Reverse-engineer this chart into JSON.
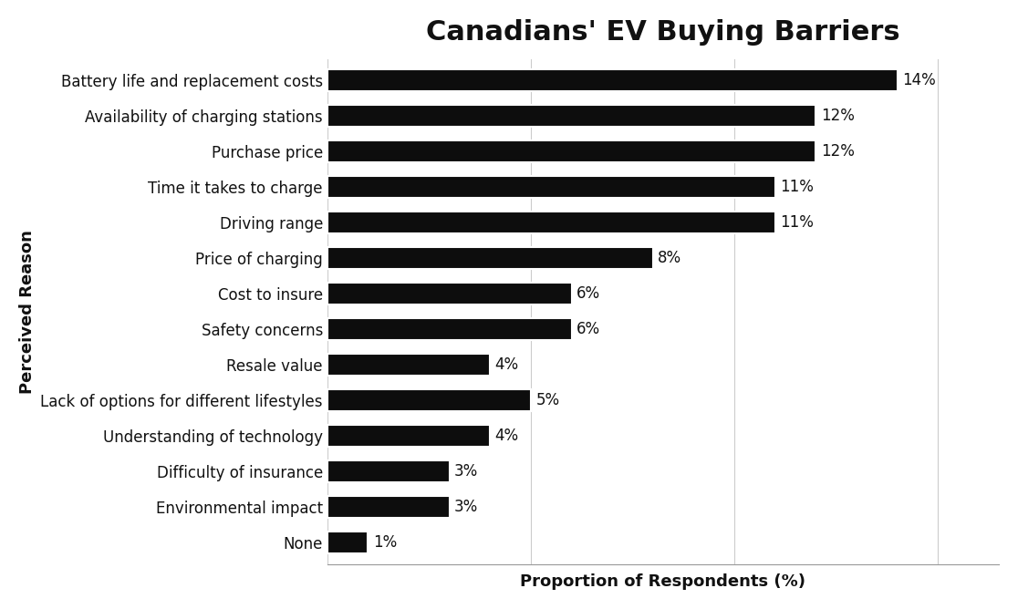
{
  "title": "Canadians' EV Buying Barriers",
  "xlabel": "Proportion of Respondents (%)",
  "ylabel": "Perceived Reason",
  "categories": [
    "Battery life and replacement costs",
    "Availability of charging stations",
    "Purchase price",
    "Time it takes to charge",
    "Driving range",
    "Price of charging",
    "Cost to insure",
    "Safety concerns",
    "Resale value",
    "Lack of options for different lifestyles",
    "Understanding of technology",
    "Difficulty of insurance",
    "Environmental impact",
    "None"
  ],
  "values": [
    14,
    12,
    12,
    11,
    11,
    8,
    6,
    6,
    4,
    5,
    4,
    3,
    3,
    1
  ],
  "bar_color": "#0d0d0d",
  "label_color": "#111111",
  "background_color": "#ffffff",
  "title_fontsize": 22,
  "bar_label_fontsize": 12,
  "tick_fontsize": 12,
  "xlabel_fontsize": 13,
  "ylabel_fontsize": 13,
  "xlim": [
    0,
    16.5
  ]
}
